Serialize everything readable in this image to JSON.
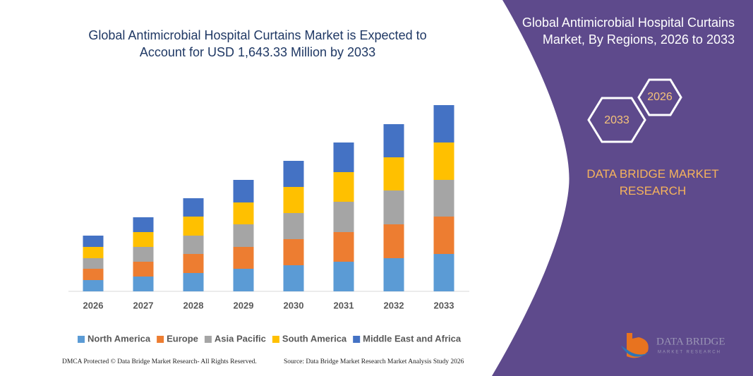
{
  "chart_data": {
    "type": "stacked-bar",
    "title": "Global Antimicrobial Hospital Curtains Market is Expected to Account for USD 1,643.33 Million by 2033",
    "categories": [
      "2026",
      "2027",
      "2028",
      "2029",
      "2030",
      "2031",
      "2032",
      "2033"
    ],
    "series": [
      {
        "name": "North America",
        "color": "#5b9bd5",
        "values": [
          16,
          21,
          26,
          32,
          37,
          42,
          47,
          53
        ]
      },
      {
        "name": "Europe",
        "color": "#ed7d31",
        "values": [
          16,
          21,
          27,
          31,
          37,
          42,
          48,
          53
        ]
      },
      {
        "name": "Asia Pacific",
        "color": "#a5a5a5",
        "values": [
          15,
          21,
          26,
          32,
          37,
          43,
          48,
          52
        ]
      },
      {
        "name": "South America",
        "color": "#ffc000",
        "values": [
          16,
          21,
          27,
          31,
          37,
          42,
          47,
          53
        ]
      },
      {
        "name": "Middle East and Africa",
        "color": "#4472c4",
        "values": [
          16,
          21,
          26,
          32,
          37,
          42,
          47,
          53
        ]
      }
    ],
    "ylim": [
      0,
      313
    ]
  },
  "panel": {
    "title": "Global Antimicrobial Hospital Curtains Market, By Regions, 2026 to 2033",
    "hexagons": [
      "2026",
      "2033"
    ],
    "brand": "DATA BRIDGE MARKET RESEARCH"
  },
  "logo": {
    "name": "DATA BRIDGE",
    "tagline": "MARKET RESEARCH"
  },
  "footer": {
    "dmca": "DMCA Protected © Data Bridge Market Research- All Rights Reserved.",
    "source": "Source: Data Bridge Market Research Market Analysis Study 2026"
  }
}
